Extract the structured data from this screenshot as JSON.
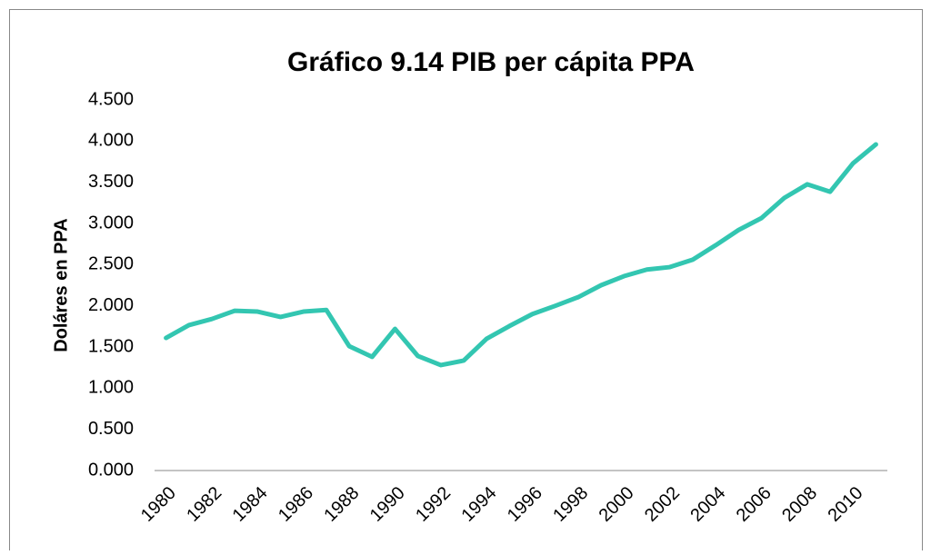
{
  "chart_data": {
    "type": "line",
    "title": "Gráfico 9.14 PIB per cápita PPA",
    "y_label": "Doláres en PPA",
    "categories": [
      "1980",
      null,
      "1982",
      null,
      "1984",
      null,
      "1986",
      null,
      "1988",
      null,
      "1990",
      null,
      "1992",
      null,
      "1994",
      null,
      "1996",
      null,
      "1998",
      null,
      "2000",
      null,
      "2002",
      null,
      "2004",
      null,
      "2006",
      null,
      "2008",
      null,
      "2010",
      null
    ],
    "values": [
      1610,
      1765,
      1840,
      1940,
      1930,
      1865,
      1930,
      1950,
      1510,
      1380,
      1720,
      1390,
      1280,
      1335,
      1600,
      1755,
      1900,
      2000,
      2105,
      2250,
      2360,
      2440,
      2470,
      2560,
      2735,
      2920,
      3065,
      3310,
      3475,
      3385,
      3730,
      3960
    ],
    "color": "#33c6b1",
    "ylim": [
      0,
      4500
    ],
    "yticks": [
      {
        "value": 0,
        "label": "0.000"
      },
      {
        "value": 500,
        "label": "0.500"
      },
      {
        "value": 1000,
        "label": "1.000"
      },
      {
        "value": 1500,
        "label": "1.500"
      },
      {
        "value": 2000,
        "label": "2.000"
      },
      {
        "value": 2500,
        "label": "2.500"
      },
      {
        "value": 3000,
        "label": "3.000"
      },
      {
        "value": 3500,
        "label": "3.500"
      },
      {
        "value": 4000,
        "label": "4.000"
      },
      {
        "value": 4500,
        "label": "4.500"
      }
    ],
    "grid": false
  }
}
